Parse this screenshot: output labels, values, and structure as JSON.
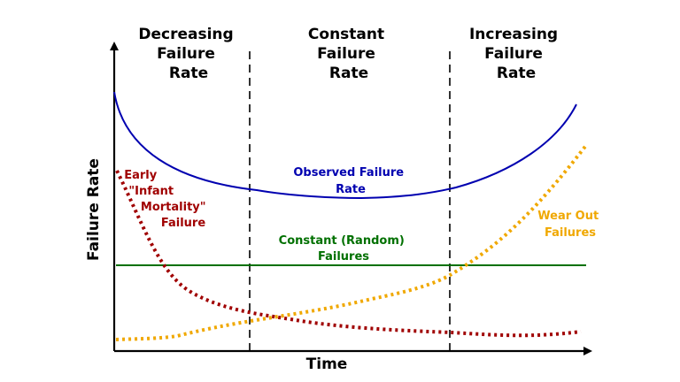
{
  "regions": [
    {
      "lines": [
        "Decreasing",
        "Failure",
        "Rate"
      ]
    },
    {
      "lines": [
        "Constant",
        "Failure",
        "Rate"
      ]
    },
    {
      "lines": [
        "Increasing",
        "Failure",
        "Rate"
      ]
    }
  ],
  "axes": {
    "x_label": "Time",
    "y_label": "Failure Rate"
  },
  "curves": {
    "observed": {
      "lines": [
        "Observed Failure",
        "Rate"
      ],
      "color": "#0000b0"
    },
    "infant": {
      "lines": [
        "Early",
        "\"Infant",
        "Mortality\"",
        "Failure"
      ],
      "color": "#a00000"
    },
    "constant": {
      "lines": [
        "Constant (Random)",
        "Failures"
      ],
      "color": "#007000"
    },
    "wearout": {
      "lines": [
        "Wear Out",
        "Failures"
      ],
      "color": "#f0a800"
    }
  },
  "colors": {
    "axis": "#000000",
    "divider": "#000000"
  }
}
